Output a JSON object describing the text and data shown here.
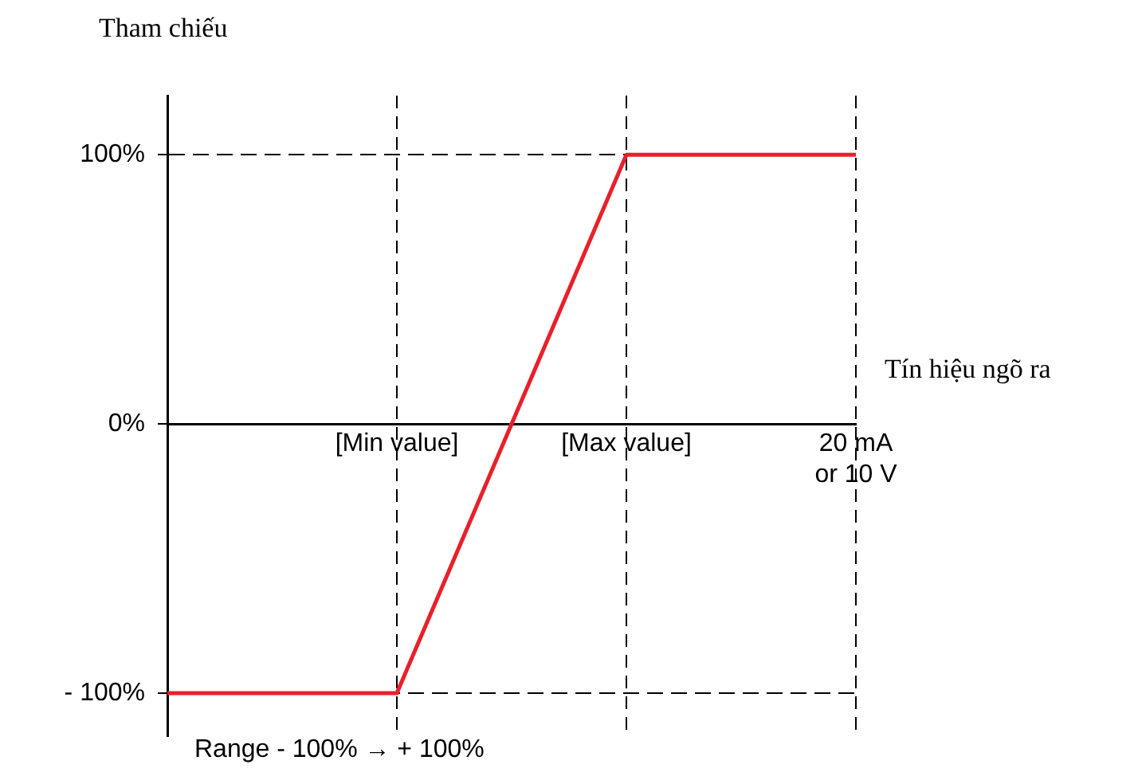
{
  "chart_data": {
    "type": "line",
    "ylabel": "Tham chiếu",
    "xlabel": "Tín hiệu ngõ ra",
    "annotations": [
      "Range - 100% → + 100%"
    ],
    "categories": [
      null,
      "[Min value]",
      "[Max value]",
      "20 mA\nor 10 V"
    ],
    "series": [
      {
        "color": "#e8202a",
        "values": [
          -100,
          -100,
          100,
          100
        ]
      }
    ],
    "ylim": [
      -116,
      122
    ],
    "yticks": [
      {
        "value": 100,
        "label": "100%"
      },
      {
        "value": 0,
        "label": "0%"
      },
      {
        "value": -100,
        "label": "- 100%"
      }
    ],
    "grid": true,
    "legend": false,
    "marker": "none",
    "line_style": "solid"
  }
}
